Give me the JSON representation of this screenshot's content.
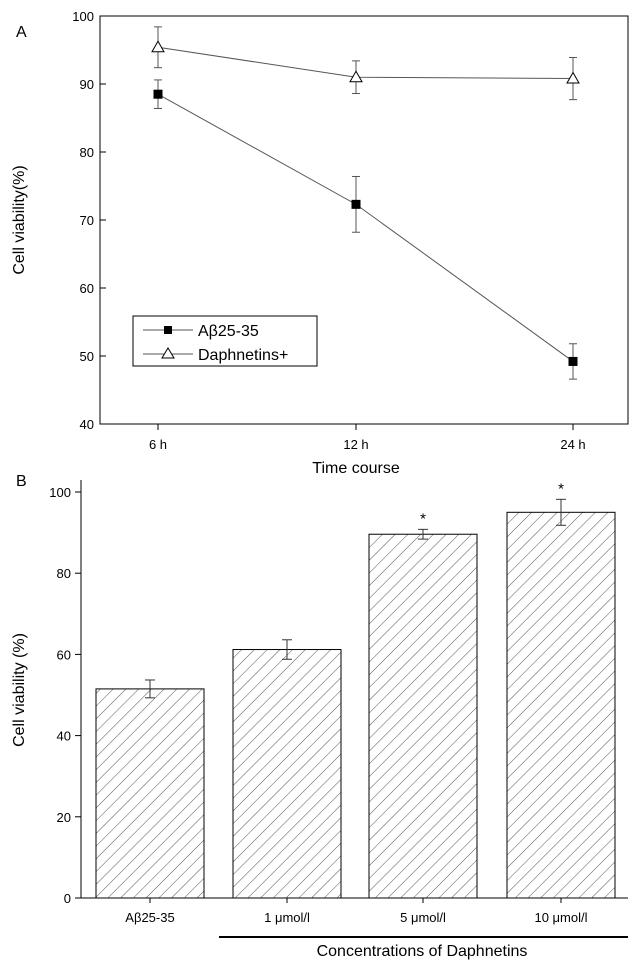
{
  "chart_data": [
    {
      "panel_label": "A",
      "type": "line",
      "categories": [
        "6 h",
        "12 h",
        "24 h"
      ],
      "xlabel": "Time course",
      "ylabel": "Cell viability(%)",
      "ylim": [
        40,
        100
      ],
      "yticks": [
        40,
        50,
        60,
        70,
        80,
        90,
        100
      ],
      "legend_position": "bottom-left",
      "series": [
        {
          "name": "Aβ25-35",
          "marker": "filled-square",
          "values": [
            88.5,
            72.3,
            49.2
          ],
          "errors": [
            2.1,
            4.1,
            2.6
          ]
        },
        {
          "name": "Daphnetins+",
          "marker": "open-triangle",
          "values": [
            95.4,
            91.0,
            90.8
          ],
          "errors": [
            3.0,
            2.4,
            3.1
          ]
        }
      ]
    },
    {
      "panel_label": "B",
      "type": "bar",
      "categories": [
        "Aβ25-35",
        "1 μmol/l",
        "5 μmol/l",
        "10 μmol/l"
      ],
      "values": [
        51.5,
        61.2,
        89.6,
        95.0
      ],
      "errors": [
        2.2,
        2.4,
        1.2,
        3.2
      ],
      "significance": [
        "",
        "",
        "*",
        "*"
      ],
      "xlabel": "Concentrations of Daphnetins",
      "ylabel": "Cell viability (%)",
      "ylim": [
        0,
        100
      ],
      "yticks": [
        0,
        20,
        40,
        60,
        80,
        100
      ],
      "fill": "diagonal-hatch"
    }
  ]
}
